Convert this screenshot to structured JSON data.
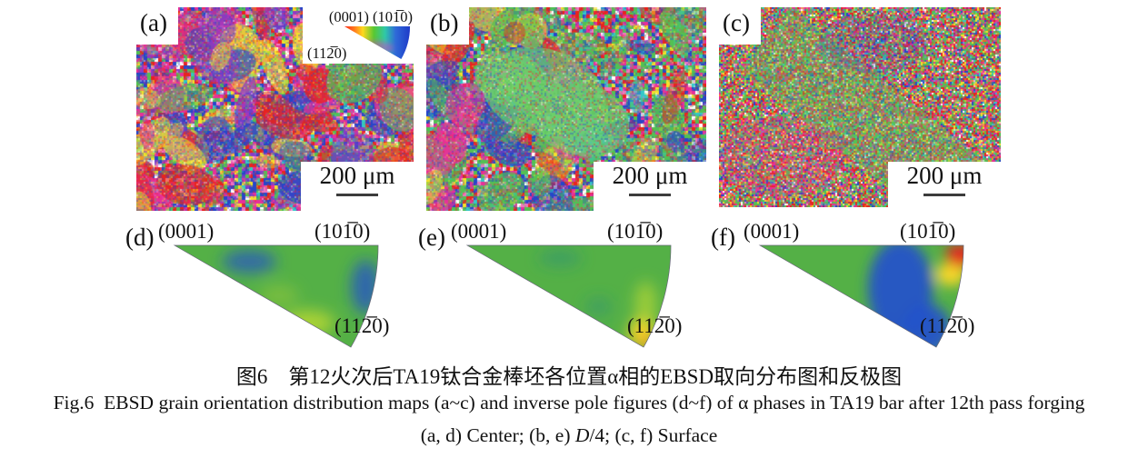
{
  "figure": {
    "maps": [
      {
        "label": "(a)",
        "scale_text": "200 μm"
      },
      {
        "label": "(b)",
        "scale_text": "200 μm"
      },
      {
        "label": "(c)",
        "scale_text": "200 μm"
      }
    ],
    "color_key": {
      "label_0001": "(0001)",
      "label_1010": "(101̅0)",
      "label_1120": "(112̅0)"
    },
    "ipfs": [
      {
        "label": "(d)",
        "top_left": "(0001)",
        "top_right": "(101̅0)",
        "bottom": "(112̅0)"
      },
      {
        "label": "(e)",
        "top_left": "(0001)",
        "top_right": "(101̅0)",
        "bottom": "(112̅0)"
      },
      {
        "label": "(f)",
        "top_left": "(0001)",
        "top_right": "(101̅0)",
        "bottom": "(112̅0)"
      }
    ],
    "captions": {
      "chinese": "图6　第12火次后TA19钛合金棒坯各位置α相的EBSD取向分布图和反极图",
      "english": "Fig.6  EBSD grain orientation distribution maps (a~c) and inverse pole figures (d~f) of α phases in TA19 bar after 12th pass forging",
      "location_line": {
        "pre": "(a, d) Center; (b, e) ",
        "italic": "D",
        "post": "/4; (c, f) Surface"
      }
    },
    "colors": {
      "ipf_base_green": "#54b046",
      "ipf_blue": "#2450cc",
      "ipf_red": "#e8231c",
      "ipf_yellow": "#ffd929",
      "ipf_orange": "#ff9a1e",
      "ipf_yellowgreen": "#b9d832",
      "ipf_teal": "#2e8f7a",
      "map_blue": "#2746c8",
      "map_red": "#e8241e",
      "map_magenta": "#e8309a",
      "map_green": "#53c053",
      "map_yellow": "#f5e12b",
      "map_purple": "#8a3cc8",
      "map_cyan": "#35c8c8",
      "map_pink": "#f077c0"
    }
  }
}
